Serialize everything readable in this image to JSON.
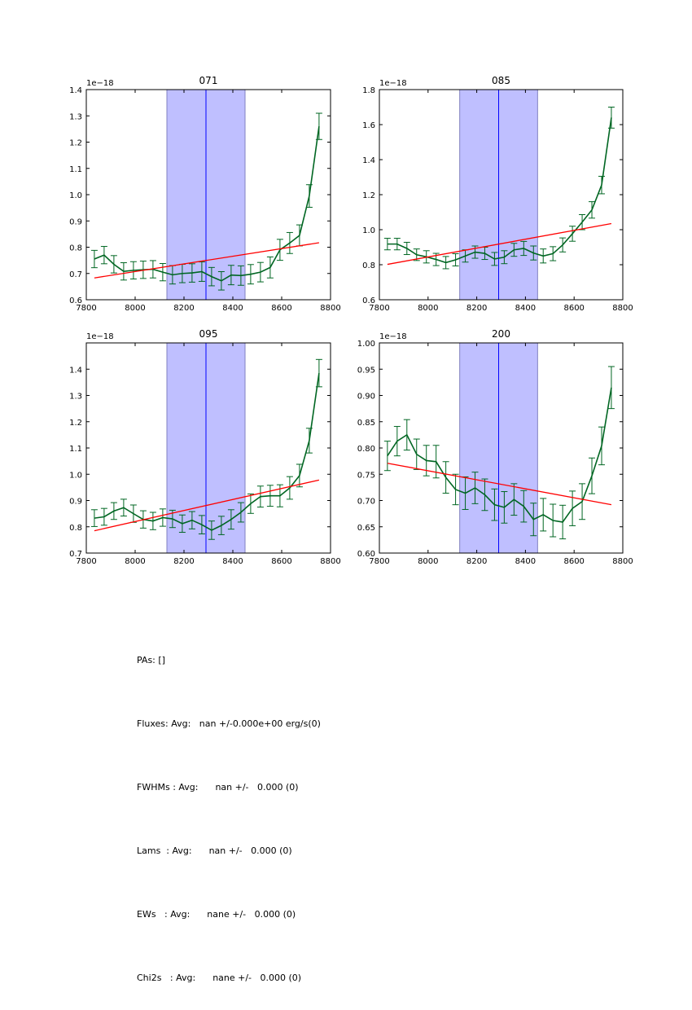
{
  "chart_data": [
    {
      "type": "line",
      "title": "071",
      "offset_label": "1e−18",
      "xlabel": "",
      "ylabel": "",
      "xlim": [
        7800,
        8800
      ],
      "ylim": [
        0.6,
        1.4
      ],
      "xticks": [
        "7800",
        "8000",
        "8200",
        "8400",
        "8600",
        "8800"
      ],
      "xtick_values": [
        7800,
        8000,
        8200,
        8400,
        8600,
        8800
      ],
      "yticks": [
        "0.6",
        "0.7",
        "0.8",
        "0.9",
        "1.0",
        "1.1",
        "1.2",
        "1.3",
        "1.4"
      ],
      "ytick_values": [
        0.6,
        0.7,
        0.8,
        0.9,
        1.0,
        1.1,
        1.2,
        1.3,
        1.4
      ],
      "band": [
        8130,
        8450
      ],
      "center_line": 8290,
      "x": [
        7833,
        7873,
        7913,
        7953,
        7993,
        8033,
        8073,
        8113,
        8153,
        8193,
        8233,
        8273,
        8313,
        8353,
        8393,
        8433,
        8473,
        8513,
        8553,
        8593,
        8633,
        8673,
        8713,
        8753
      ],
      "series": [
        {
          "name": "flux",
          "color": "#006622",
          "values": [
            0.755,
            0.77,
            0.735,
            0.708,
            0.712,
            0.714,
            0.716,
            0.705,
            0.695,
            0.7,
            0.702,
            0.707,
            0.688,
            0.672,
            0.694,
            0.692,
            0.697,
            0.705,
            0.723,
            0.79,
            0.816,
            0.845,
            0.995,
            1.26
          ],
          "errors": [
            0.033,
            0.033,
            0.033,
            0.033,
            0.033,
            0.033,
            0.033,
            0.033,
            0.035,
            0.035,
            0.035,
            0.037,
            0.035,
            0.035,
            0.037,
            0.037,
            0.037,
            0.037,
            0.04,
            0.04,
            0.04,
            0.04,
            0.043,
            0.05
          ]
        },
        {
          "name": "continuum fit",
          "color": "#ff0000",
          "x": [
            7833,
            8753
          ],
          "values": [
            0.683,
            0.817
          ]
        }
      ]
    },
    {
      "type": "line",
      "title": "085",
      "offset_label": "1e−18",
      "xlabel": "",
      "ylabel": "",
      "xlim": [
        7800,
        8800
      ],
      "ylim": [
        0.6,
        1.8
      ],
      "xticks": [
        "7800",
        "8000",
        "8200",
        "8400",
        "8600",
        "8800"
      ],
      "xtick_values": [
        7800,
        8000,
        8200,
        8400,
        8600,
        8800
      ],
      "yticks": [
        "0.6",
        "0.8",
        "1.0",
        "1.2",
        "1.4",
        "1.6",
        "1.8"
      ],
      "ytick_values": [
        0.6,
        0.8,
        1.0,
        1.2,
        1.4,
        1.6,
        1.8
      ],
      "band": [
        8130,
        8450
      ],
      "center_line": 8290,
      "x": [
        7833,
        7873,
        7913,
        7953,
        7993,
        8033,
        8073,
        8113,
        8153,
        8193,
        8233,
        8273,
        8313,
        8353,
        8393,
        8433,
        8473,
        8513,
        8553,
        8593,
        8633,
        8673,
        8713,
        8753
      ],
      "series": [
        {
          "name": "flux",
          "color": "#006622",
          "values": [
            0.918,
            0.918,
            0.893,
            0.857,
            0.845,
            0.83,
            0.812,
            0.828,
            0.85,
            0.872,
            0.865,
            0.833,
            0.843,
            0.885,
            0.893,
            0.867,
            0.85,
            0.863,
            0.913,
            0.977,
            1.043,
            1.113,
            1.255,
            1.64
          ],
          "errors": [
            0.033,
            0.033,
            0.035,
            0.033,
            0.035,
            0.035,
            0.035,
            0.035,
            0.035,
            0.035,
            0.035,
            0.037,
            0.037,
            0.037,
            0.04,
            0.04,
            0.04,
            0.04,
            0.04,
            0.043,
            0.043,
            0.047,
            0.05,
            0.06
          ]
        },
        {
          "name": "continuum fit",
          "color": "#ff0000",
          "x": [
            7833,
            8753
          ],
          "values": [
            0.802,
            1.035
          ]
        }
      ]
    },
    {
      "type": "line",
      "title": "095",
      "offset_label": "1e−18",
      "xlabel": "",
      "ylabel": "",
      "xlim": [
        7800,
        8800
      ],
      "ylim": [
        0.7,
        1.5
      ],
      "xticks": [
        "7800",
        "8000",
        "8200",
        "8400",
        "8600",
        "8800"
      ],
      "xtick_values": [
        7800,
        8000,
        8200,
        8400,
        8600,
        8800
      ],
      "yticks": [
        "0.7",
        "0.8",
        "0.9",
        "1.0",
        "1.1",
        "1.2",
        "1.3",
        "1.4"
      ],
      "ytick_values": [
        0.7,
        0.8,
        0.9,
        1.0,
        1.1,
        1.2,
        1.3,
        1.4
      ],
      "band": [
        8130,
        8450
      ],
      "center_line": 8290,
      "x": [
        7833,
        7873,
        7913,
        7953,
        7993,
        8033,
        8073,
        8113,
        8153,
        8193,
        8233,
        8273,
        8313,
        8353,
        8393,
        8433,
        8473,
        8513,
        8553,
        8593,
        8633,
        8673,
        8713,
        8753
      ],
      "series": [
        {
          "name": "flux",
          "color": "#006622",
          "values": [
            0.833,
            0.838,
            0.86,
            0.873,
            0.85,
            0.828,
            0.822,
            0.835,
            0.83,
            0.812,
            0.825,
            0.808,
            0.787,
            0.805,
            0.828,
            0.855,
            0.888,
            0.915,
            0.918,
            0.918,
            0.948,
            0.995,
            1.128,
            1.385
          ],
          "errors": [
            0.032,
            0.032,
            0.032,
            0.032,
            0.033,
            0.033,
            0.033,
            0.033,
            0.033,
            0.033,
            0.033,
            0.035,
            0.035,
            0.035,
            0.037,
            0.037,
            0.037,
            0.04,
            0.04,
            0.042,
            0.043,
            0.043,
            0.047,
            0.052
          ]
        },
        {
          "name": "continuum fit",
          "color": "#ff0000",
          "x": [
            7833,
            8753
          ],
          "values": [
            0.785,
            0.978
          ]
        }
      ]
    },
    {
      "type": "line",
      "title": "200",
      "offset_label": "1e−18",
      "xlabel": "",
      "ylabel": "",
      "xlim": [
        7800,
        8800
      ],
      "ylim": [
        0.6,
        1.0
      ],
      "xticks": [
        "7800",
        "8000",
        "8200",
        "8400",
        "8600",
        "8800"
      ],
      "xtick_values": [
        7800,
        8000,
        8200,
        8400,
        8600,
        8800
      ],
      "yticks": [
        "0.60",
        "0.65",
        "0.70",
        "0.75",
        "0.80",
        "0.85",
        "0.90",
        "0.95",
        "1.00"
      ],
      "ytick_values": [
        0.6,
        0.65,
        0.7,
        0.75,
        0.8,
        0.85,
        0.9,
        0.95,
        1.0
      ],
      "band": [
        8130,
        8450
      ],
      "center_line": 8290,
      "x": [
        7833,
        7873,
        7913,
        7953,
        7993,
        8033,
        8073,
        8113,
        8153,
        8193,
        8233,
        8273,
        8313,
        8353,
        8393,
        8433,
        8473,
        8513,
        8553,
        8593,
        8633,
        8673,
        8713,
        8753
      ],
      "series": [
        {
          "name": "flux",
          "color": "#006622",
          "values": [
            0.785,
            0.813,
            0.825,
            0.788,
            0.776,
            0.774,
            0.744,
            0.721,
            0.714,
            0.724,
            0.711,
            0.692,
            0.687,
            0.702,
            0.689,
            0.664,
            0.673,
            0.662,
            0.659,
            0.685,
            0.698,
            0.747,
            0.804,
            0.915
          ],
          "errors": [
            0.028,
            0.028,
            0.029,
            0.029,
            0.029,
            0.031,
            0.03,
            0.029,
            0.031,
            0.03,
            0.03,
            0.03,
            0.03,
            0.03,
            0.03,
            0.031,
            0.031,
            0.031,
            0.032,
            0.033,
            0.034,
            0.034,
            0.036,
            0.04
          ]
        },
        {
          "name": "continuum fit",
          "color": "#ff0000",
          "x": [
            7833,
            8753
          ],
          "values": [
            0.771,
            0.692
          ]
        }
      ]
    }
  ],
  "stats": {
    "lines": [
      "PAs: []",
      "Fluxes: Avg:   nan +/-0.000e+00 erg/s(0)",
      "FWHMs : Avg:      nan +/-   0.000 (0)",
      "Lams  : Avg:      nan +/-   0.000 (0)",
      "EWs   : Avg:      nane +/-   0.000 (0)",
      "Chi2s   : Avg:      nane +/-   0.000 (0)"
    ]
  },
  "colors": {
    "band_fill": "#bfbfff",
    "band_edge": "#8080c0",
    "center_line": "#0000ff",
    "flux": "#006622",
    "fit": "#ff0000"
  }
}
